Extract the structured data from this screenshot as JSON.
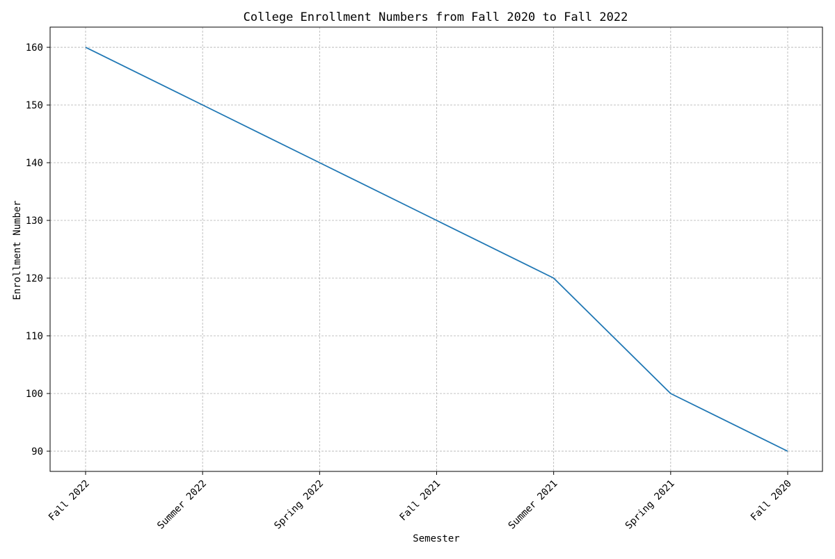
{
  "chart_data": {
    "type": "line",
    "title": "College Enrollment Numbers from Fall 2020 to Fall 2022",
    "xlabel": "Semester",
    "ylabel": "Enrollment Number",
    "categories": [
      "Fall 2022",
      "Summer 2022",
      "Spring 2022",
      "Fall 2021",
      "Summer 2021",
      "Spring 2021",
      "Fall 2020"
    ],
    "series": [
      {
        "values": [
          160,
          150,
          140,
          130,
          120,
          100,
          90
        ],
        "color": "#1f77b4"
      }
    ],
    "ylim": [
      86.5,
      163.5
    ],
    "yticks": [
      90,
      100,
      110,
      120,
      130,
      140,
      150,
      160
    ],
    "grid": true,
    "legend": "none"
  }
}
